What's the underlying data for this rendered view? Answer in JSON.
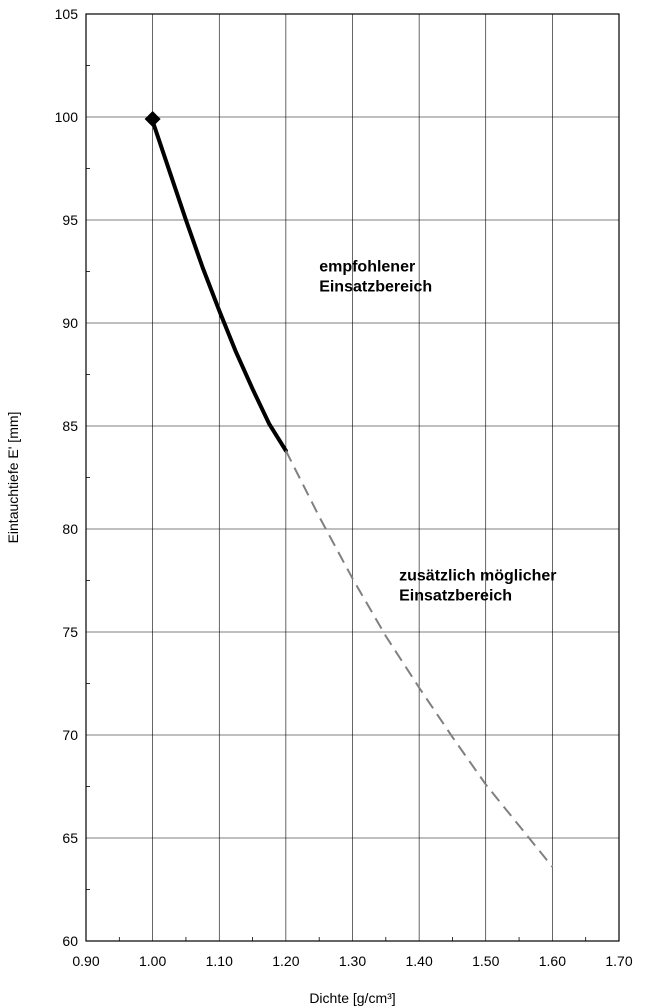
{
  "chart_data": {
    "type": "line",
    "title": "",
    "xlabel": "Dichte [g/cm³]",
    "ylabel": "Eintauchtiefe E' [mm]",
    "xlim": [
      0.9,
      1.7
    ],
    "ylim": [
      60,
      105
    ],
    "xticks": [
      0.9,
      1.0,
      1.1,
      1.2,
      1.3,
      1.4,
      1.5,
      1.6,
      1.7
    ],
    "xtick_labels": [
      "0.90",
      "1.00",
      "1.10",
      "1.20",
      "1.30",
      "1.40",
      "1.50",
      "1.60",
      "1.70"
    ],
    "yticks": [
      60,
      65,
      70,
      75,
      80,
      85,
      90,
      95,
      100,
      105
    ],
    "ytick_labels": [
      "60",
      "65",
      "70",
      "75",
      "80",
      "85",
      "90",
      "95",
      "100",
      "105"
    ],
    "grid": true,
    "series": [
      {
        "style": "solid",
        "color": "#000000",
        "x": [
          1.0,
          1.025,
          1.05,
          1.075,
          1.1,
          1.125,
          1.15,
          1.175,
          1.2
        ],
        "y": [
          99.8,
          97.4,
          95.0,
          92.7,
          90.6,
          88.6,
          86.8,
          85.1,
          83.8
        ]
      },
      {
        "style": "dashed",
        "color": "#808080",
        "x": [
          1.2,
          1.25,
          1.3,
          1.35,
          1.4,
          1.45,
          1.5,
          1.55,
          1.6
        ],
        "y": [
          83.8,
          80.6,
          77.6,
          74.8,
          72.3,
          69.9,
          67.6,
          65.6,
          63.6
        ]
      }
    ],
    "marker": {
      "shape": "diamond",
      "x": 1.0,
      "y": 99.9,
      "color": "#000000"
    },
    "annotations": [
      {
        "lines": [
          "empfohlener",
          "Einsatzbereich"
        ],
        "x": 1.25,
        "y": 92.5
      },
      {
        "lines": [
          "zusätzlich möglicher",
          "Einsatzbereich"
        ],
        "x": 1.37,
        "y": 77.5
      }
    ]
  }
}
